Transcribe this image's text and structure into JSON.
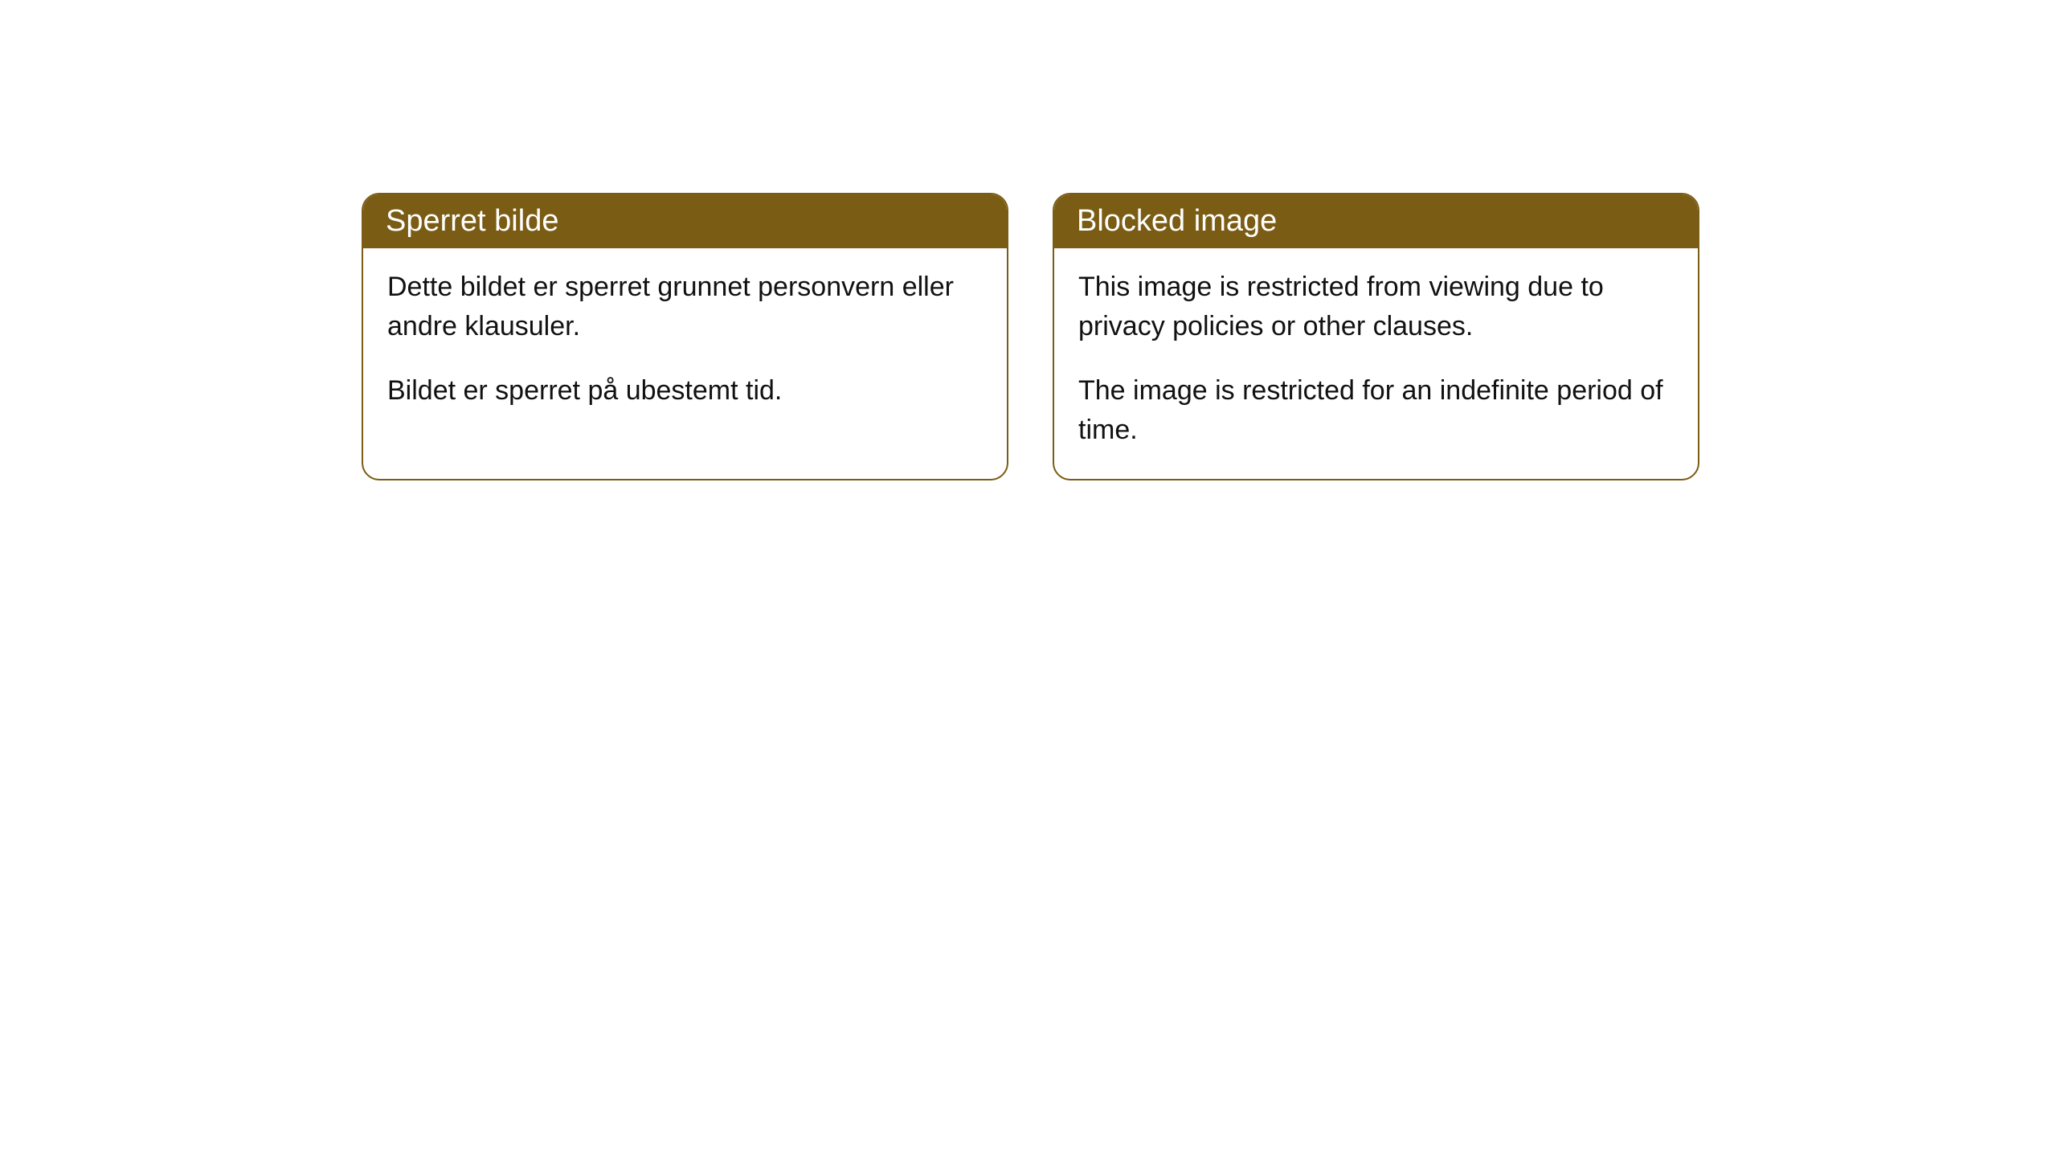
{
  "cards": [
    {
      "title": "Sperret bilde",
      "paragraph1": "Dette bildet er sperret grunnet personvern eller andre klausuler.",
      "paragraph2": "Bildet er sperret på ubestemt tid."
    },
    {
      "title": "Blocked image",
      "paragraph1": "This image is restricted from viewing due to privacy policies or other clauses.",
      "paragraph2": "The image is restricted for an indefinite period of time."
    }
  ],
  "styling": {
    "header_background": "#7a5c14",
    "header_text_color": "#ffffff",
    "border_color": "#7a5c14",
    "body_background": "#ffffff",
    "body_text_color": "#111111",
    "border_radius": 22,
    "header_fontsize": 38,
    "body_fontsize": 34
  }
}
